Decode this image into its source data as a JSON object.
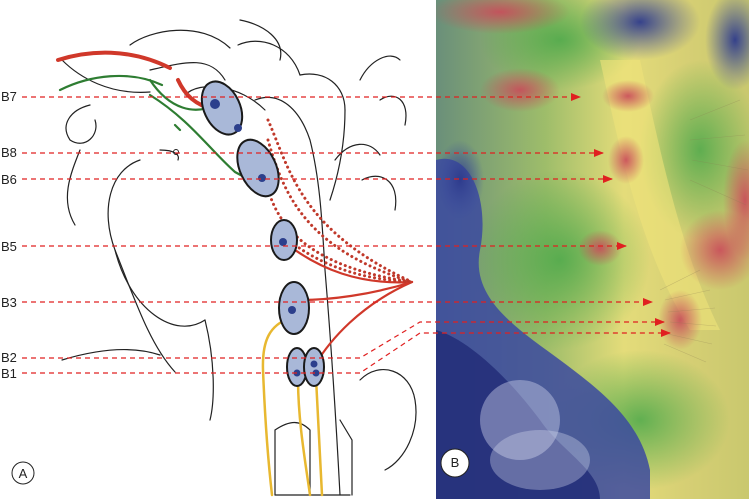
{
  "figure": {
    "panel_a_label": "A",
    "panel_b_label": "B",
    "nuclei": [
      {
        "id": "b7",
        "label": "B7"
      },
      {
        "id": "b8",
        "label": "B8"
      },
      {
        "id": "b6",
        "label": "B6"
      },
      {
        "id": "b5",
        "label": "B5"
      },
      {
        "id": "b3",
        "label": "B3"
      },
      {
        "id": "b2",
        "label": "B2"
      },
      {
        "id": "b1",
        "label": "B1"
      }
    ]
  },
  "colors": {
    "nucleus_fill": "#a9b8d8",
    "nucleus_dot": "#2c3f8c",
    "pathway_red": "#d0382a",
    "pathway_green": "#2e7d32",
    "pathway_yellow": "#e8b830",
    "arrow_red": "#e02020"
  }
}
